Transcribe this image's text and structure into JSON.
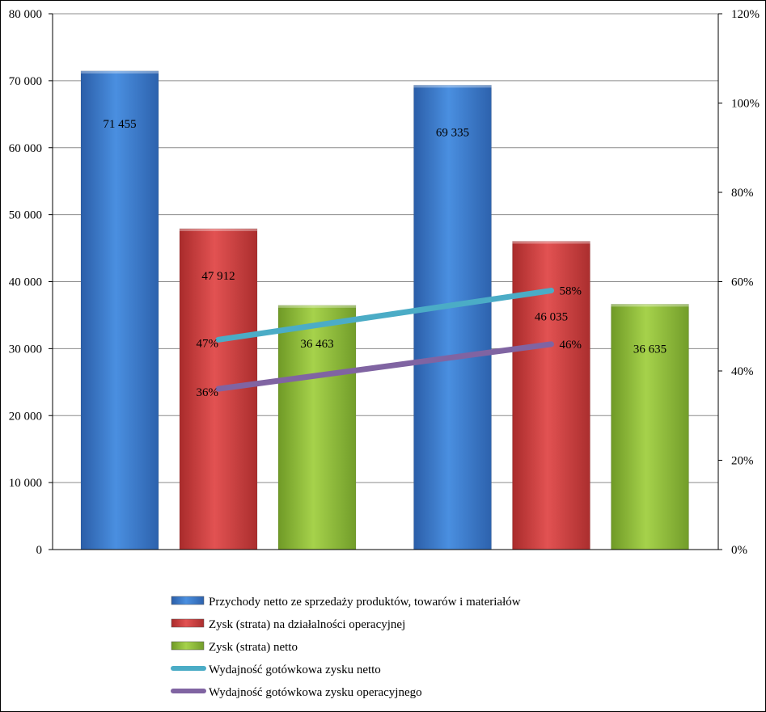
{
  "chart_data": {
    "type": "bar",
    "categories": [
      "",
      ""
    ],
    "series": [
      {
        "name": "Przychody netto ze sprzedaży produktów, towarów i materiałów",
        "type": "bar",
        "axis": "left",
        "color": "#3a7fd5",
        "values": [
          71455,
          69335
        ],
        "labels": [
          "71 455",
          "69 335"
        ]
      },
      {
        "name": "Zysk (strata) na działalności operacyjnej",
        "type": "bar",
        "axis": "left",
        "color": "#d23b3b",
        "values": [
          47912,
          46035
        ],
        "labels": [
          "47 912",
          "46 035"
        ]
      },
      {
        "name": "Zysk (strata) netto",
        "type": "bar",
        "axis": "left",
        "color": "#92c23a",
        "values": [
          36463,
          36635
        ],
        "labels": [
          "36 463",
          "36 635"
        ]
      },
      {
        "name": "Wydajność gotówkowa  zysku netto",
        "type": "line",
        "axis": "right",
        "color": "#4bacc6",
        "values": [
          47,
          58
        ],
        "labels": [
          "47%",
          "58%"
        ]
      },
      {
        "name": "Wydajność gotówkowa zysku  operacyjnego",
        "type": "line",
        "axis": "right",
        "color": "#8064a2",
        "values": [
          36,
          46
        ],
        "labels": [
          "36%",
          "46%"
        ]
      }
    ],
    "y_left": {
      "min": 0,
      "max": 80000,
      "ticks": [
        "0",
        "10 000",
        "20 000",
        "30 000",
        "40 000",
        "50 000",
        "60 000",
        "70 000",
        "80 000"
      ]
    },
    "y_right": {
      "min": 0,
      "max": 120,
      "ticks": [
        "0%",
        "20%",
        "40%",
        "60%",
        "80%",
        "100%",
        "120%"
      ]
    },
    "grid": true,
    "legend": "bottom"
  }
}
